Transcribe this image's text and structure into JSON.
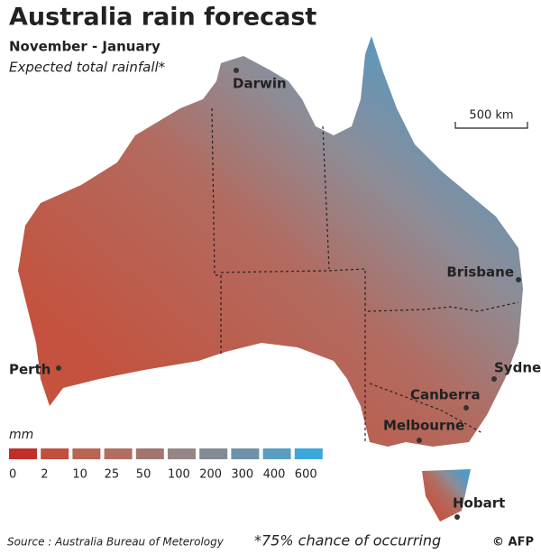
{
  "header": {
    "title": "Australia rain forecast",
    "subtitle": "November - January",
    "description": "Expected total rainfall*"
  },
  "cities": [
    "Darwin",
    "Brisbane",
    "Sydney",
    "Canberra",
    "Melbourne",
    "Perth",
    "Hobart"
  ],
  "scale": "500 km",
  "legend": {
    "title": "mm",
    "items": [
      {
        "value": 0,
        "color": "#c0302a"
      },
      {
        "value": 2,
        "color": "#c14f3e"
      },
      {
        "value": 10,
        "color": "#b86552"
      },
      {
        "value": 25,
        "color": "#b06e60"
      },
      {
        "value": 50,
        "color": "#a27670"
      },
      {
        "value": 100,
        "color": "#958687"
      },
      {
        "value": 200,
        "color": "#838a94"
      },
      {
        "value": 300,
        "color": "#6f92a9"
      },
      {
        "value": 400,
        "color": "#5a9dc0"
      },
      {
        "value": 600,
        "color": "#3aa8d8"
      }
    ]
  },
  "footer": {
    "source": "Source : Australia Bureau of Meterology",
    "note": "*75% chance of occurring",
    "credit": "© AFP"
  }
}
